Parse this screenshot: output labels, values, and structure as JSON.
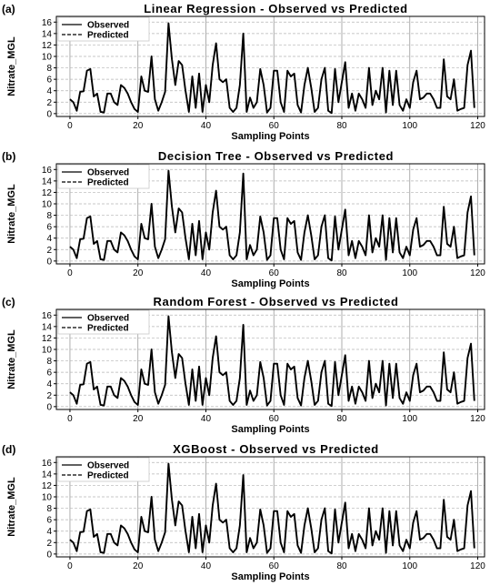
{
  "chart_data": [
    {
      "panel": "(a)",
      "type": "line",
      "title": "Linear Regression - Observed vs Predicted",
      "xlabel": "Sampling Points",
      "ylabel": "Nitrate_MGL",
      "xlim": [
        -4,
        122
      ],
      "ylim": [
        -0.5,
        17
      ],
      "xticks": [
        0,
        20,
        40,
        60,
        80,
        100,
        120
      ],
      "yticks": [
        0,
        2,
        4,
        6,
        8,
        10,
        12,
        14,
        16
      ],
      "grid": true,
      "legend": "top-left",
      "series": [
        {
          "name": "Observed",
          "style": "solid",
          "values": [
            2.5,
            2.0,
            0.5,
            3.8,
            3.9,
            7.5,
            7.8,
            3.0,
            3.5,
            0.3,
            0.2,
            3.5,
            3.5,
            2.0,
            1.5,
            5.0,
            4.5,
            3.5,
            2.0,
            0.8,
            0.3,
            6.5,
            4.0,
            3.8,
            10.0,
            2.5,
            0.5,
            2.0,
            3.8,
            15.8,
            9.5,
            5.0,
            9.2,
            8.5,
            4.0,
            0.3,
            6.5,
            1.0,
            7.0,
            0.3,
            5.0,
            2.0,
            8.5,
            12.3,
            6.0,
            5.5,
            6.0,
            1.0,
            0.3,
            1.0,
            5.0,
            14.0,
            0.3,
            2.8,
            1.0,
            2.0,
            7.8,
            5.0,
            0.2,
            1.0,
            7.5,
            7.5,
            2.0,
            0.3,
            7.5,
            6.5,
            7.0,
            1.5,
            0.2,
            5.0,
            8.0,
            4.5,
            0.3,
            1.0,
            6.0,
            8.0,
            0.5,
            0.1,
            7.8,
            2.0,
            5.5,
            9.0,
            1.0,
            3.5,
            0.5,
            3.5,
            2.5,
            1.0,
            8.0,
            1.5,
            4.0,
            2.5,
            8.0,
            0.2,
            7.5,
            1.5,
            7.5,
            1.5,
            0.5,
            2.5,
            1.0,
            5.5,
            7.5,
            2.5,
            2.8,
            3.5,
            3.5,
            2.5,
            1.0,
            1.0,
            9.5,
            3.0,
            2.5,
            6.0,
            0.5,
            0.8,
            1.0,
            8.5,
            11.0,
            1.0
          ]
        },
        {
          "name": "Predicted",
          "style": "dashed",
          "values": [
            2.5,
            2.0,
            0.5,
            3.8,
            3.9,
            7.5,
            7.8,
            3.0,
            3.5,
            0.3,
            0.2,
            3.5,
            3.5,
            2.0,
            1.5,
            5.0,
            4.5,
            3.5,
            2.0,
            0.8,
            0.3,
            6.5,
            4.0,
            3.8,
            10.0,
            2.5,
            0.5,
            2.0,
            3.8,
            15.8,
            9.5,
            5.0,
            9.2,
            8.5,
            4.0,
            0.3,
            6.5,
            1.0,
            7.0,
            0.3,
            5.0,
            2.0,
            8.5,
            12.3,
            6.0,
            5.5,
            6.0,
            1.0,
            0.3,
            1.0,
            5.0,
            14.0,
            0.3,
            2.8,
            1.0,
            2.0,
            7.8,
            5.0,
            0.2,
            1.0,
            7.5,
            7.5,
            2.0,
            0.3,
            7.5,
            6.5,
            7.0,
            1.5,
            0.2,
            5.0,
            8.0,
            4.5,
            0.3,
            1.0,
            6.0,
            8.0,
            0.5,
            0.1,
            7.8,
            2.0,
            5.5,
            9.0,
            1.0,
            3.5,
            0.5,
            3.5,
            2.5,
            1.0,
            8.0,
            1.5,
            4.0,
            2.5,
            8.0,
            0.2,
            7.5,
            1.5,
            7.5,
            1.5,
            0.5,
            2.5,
            1.0,
            5.5,
            7.5,
            2.5,
            2.8,
            3.5,
            3.5,
            2.5,
            1.0,
            1.0,
            9.5,
            3.0,
            2.5,
            6.0,
            0.5,
            0.8,
            1.0,
            8.5,
            11.0,
            1.0
          ]
        }
      ]
    },
    {
      "panel": "(b)",
      "type": "line",
      "title": "Decision Tree - Observed vs Predicted",
      "xlabel": "Sampling Points",
      "ylabel": "Nitrate_MGL",
      "xlim": [
        -4,
        122
      ],
      "ylim": [
        -0.5,
        17
      ],
      "xticks": [
        0,
        20,
        40,
        60,
        80,
        100,
        120
      ],
      "yticks": [
        0,
        2,
        4,
        6,
        8,
        10,
        12,
        14,
        16
      ],
      "grid": true,
      "legend": "top-left",
      "series": [
        {
          "name": "Observed",
          "style": "solid",
          "values": [
            2.5,
            2.0,
            0.5,
            3.8,
            3.9,
            7.5,
            7.8,
            3.0,
            3.5,
            0.3,
            0.2,
            3.5,
            3.5,
            2.0,
            1.5,
            5.0,
            4.5,
            3.5,
            2.0,
            0.8,
            0.3,
            6.5,
            4.0,
            3.8,
            10.0,
            2.5,
            0.5,
            2.0,
            3.8,
            15.8,
            9.5,
            5.0,
            9.2,
            8.5,
            4.0,
            0.3,
            6.5,
            1.0,
            7.0,
            0.3,
            5.0,
            2.0,
            8.5,
            12.3,
            6.0,
            5.5,
            6.0,
            1.0,
            0.3,
            1.0,
            5.0,
            15.3,
            0.3,
            2.8,
            1.0,
            2.0,
            7.8,
            5.0,
            0.2,
            1.0,
            7.5,
            7.5,
            2.0,
            0.3,
            7.5,
            6.5,
            7.0,
            1.5,
            0.2,
            5.0,
            8.0,
            4.5,
            0.3,
            1.0,
            6.0,
            8.0,
            0.5,
            0.1,
            7.8,
            2.0,
            5.5,
            9.0,
            1.0,
            3.5,
            0.5,
            3.5,
            2.5,
            1.0,
            8.0,
            1.5,
            4.0,
            2.5,
            8.0,
            0.2,
            7.5,
            1.5,
            7.5,
            1.5,
            0.5,
            2.5,
            1.0,
            5.5,
            7.5,
            2.5,
            2.8,
            3.5,
            3.5,
            2.5,
            1.0,
            1.0,
            9.5,
            3.0,
            2.5,
            6.0,
            0.5,
            0.8,
            1.0,
            8.5,
            11.3,
            1.0
          ]
        },
        {
          "name": "Predicted",
          "style": "dashed",
          "values": [
            2.5,
            2.0,
            0.5,
            3.8,
            3.9,
            7.5,
            7.8,
            3.0,
            3.5,
            0.3,
            0.2,
            3.5,
            3.5,
            2.0,
            1.5,
            5.0,
            4.5,
            3.5,
            2.0,
            0.8,
            0.3,
            6.5,
            4.0,
            3.8,
            10.0,
            2.5,
            0.5,
            2.0,
            3.8,
            15.8,
            9.5,
            5.0,
            9.2,
            8.5,
            4.0,
            0.3,
            6.5,
            1.0,
            7.0,
            0.3,
            5.0,
            2.0,
            8.5,
            12.3,
            6.0,
            5.5,
            6.0,
            1.0,
            0.3,
            1.0,
            5.0,
            15.3,
            0.3,
            2.8,
            1.0,
            2.0,
            7.8,
            5.0,
            0.2,
            1.0,
            7.5,
            7.5,
            2.0,
            0.3,
            7.5,
            6.5,
            7.0,
            1.5,
            0.2,
            5.0,
            8.0,
            4.5,
            0.3,
            1.0,
            6.0,
            8.0,
            0.5,
            0.1,
            7.8,
            2.0,
            5.5,
            9.0,
            1.0,
            3.5,
            0.5,
            3.5,
            2.5,
            1.0,
            8.0,
            1.5,
            4.0,
            2.5,
            8.0,
            0.2,
            7.5,
            1.5,
            7.5,
            1.5,
            0.5,
            2.5,
            1.0,
            5.5,
            7.5,
            2.5,
            2.8,
            3.5,
            3.5,
            2.5,
            1.0,
            1.0,
            9.5,
            3.0,
            2.5,
            6.0,
            0.5,
            0.8,
            1.0,
            8.5,
            11.3,
            1.0
          ]
        }
      ]
    },
    {
      "panel": "(c)",
      "type": "line",
      "title": "Random Forest - Observed vs Predicted",
      "xlabel": "Sampling Points",
      "ylabel": "Nitrate_MGL",
      "xlim": [
        -4,
        122
      ],
      "ylim": [
        -0.5,
        17
      ],
      "xticks": [
        0,
        20,
        40,
        60,
        80,
        100,
        120
      ],
      "yticks": [
        0,
        2,
        4,
        6,
        8,
        10,
        12,
        14,
        16
      ],
      "grid": true,
      "legend": "top-left",
      "series": [
        {
          "name": "Observed",
          "style": "solid",
          "values": [
            2.5,
            2.0,
            0.5,
            3.8,
            3.9,
            7.5,
            7.8,
            3.0,
            3.5,
            0.3,
            0.2,
            3.5,
            3.5,
            2.0,
            1.5,
            5.0,
            4.5,
            3.5,
            2.0,
            0.8,
            0.3,
            6.5,
            4.0,
            3.8,
            10.0,
            2.5,
            0.5,
            2.0,
            3.8,
            15.8,
            9.5,
            5.0,
            9.2,
            8.5,
            4.0,
            0.3,
            6.5,
            1.0,
            7.0,
            0.3,
            5.0,
            2.0,
            8.5,
            12.3,
            6.0,
            5.5,
            6.0,
            1.0,
            0.3,
            1.0,
            5.0,
            14.3,
            0.3,
            2.8,
            1.0,
            2.0,
            7.8,
            5.0,
            0.2,
            1.0,
            7.5,
            7.5,
            2.0,
            0.3,
            7.5,
            6.5,
            7.0,
            1.5,
            0.2,
            5.0,
            8.0,
            4.5,
            0.3,
            1.0,
            6.0,
            8.0,
            0.5,
            0.1,
            7.8,
            2.0,
            5.5,
            9.0,
            1.0,
            3.5,
            0.5,
            3.5,
            2.5,
            1.0,
            8.0,
            1.5,
            4.0,
            2.5,
            8.0,
            0.2,
            7.5,
            1.5,
            7.5,
            1.5,
            0.5,
            2.5,
            1.0,
            5.5,
            7.5,
            2.5,
            2.8,
            3.5,
            3.5,
            2.5,
            1.0,
            1.0,
            9.5,
            3.0,
            2.5,
            6.0,
            0.5,
            0.8,
            1.0,
            8.5,
            11.0,
            1.0
          ]
        },
        {
          "name": "Predicted",
          "style": "dashed",
          "values": [
            2.5,
            2.0,
            0.5,
            3.8,
            3.9,
            7.5,
            7.8,
            3.0,
            3.5,
            0.3,
            0.2,
            3.5,
            3.5,
            2.0,
            1.5,
            5.0,
            4.5,
            3.5,
            2.0,
            0.8,
            0.3,
            6.5,
            4.0,
            3.8,
            10.0,
            2.5,
            0.5,
            2.0,
            3.8,
            15.8,
            9.5,
            5.0,
            9.2,
            8.5,
            4.0,
            0.3,
            6.5,
            1.0,
            7.0,
            0.3,
            5.0,
            2.0,
            8.5,
            12.3,
            6.0,
            5.5,
            6.0,
            1.0,
            0.3,
            1.0,
            5.0,
            14.3,
            0.3,
            2.8,
            1.0,
            2.0,
            7.8,
            5.0,
            0.2,
            1.0,
            7.5,
            7.5,
            2.0,
            0.3,
            7.5,
            6.5,
            7.0,
            1.5,
            0.2,
            5.0,
            8.0,
            4.5,
            0.3,
            1.0,
            6.0,
            8.0,
            0.5,
            0.1,
            7.8,
            2.0,
            5.5,
            9.0,
            1.0,
            3.5,
            0.5,
            3.5,
            2.5,
            1.0,
            8.0,
            1.5,
            4.0,
            2.5,
            8.0,
            0.2,
            7.5,
            1.5,
            7.5,
            1.5,
            0.5,
            2.5,
            1.0,
            5.5,
            7.5,
            2.5,
            2.8,
            3.5,
            3.5,
            2.5,
            1.0,
            1.0,
            9.5,
            3.0,
            2.5,
            6.0,
            0.5,
            0.8,
            1.0,
            8.5,
            11.0,
            1.0
          ]
        }
      ]
    },
    {
      "panel": "(d)",
      "type": "line",
      "title": "XGBoost - Observed vs Predicted",
      "xlabel": "Sampling Points",
      "ylabel": "Nitrate_MGL",
      "xlim": [
        -4,
        122
      ],
      "ylim": [
        -0.5,
        17
      ],
      "xticks": [
        0,
        20,
        40,
        60,
        80,
        100,
        120
      ],
      "yticks": [
        0,
        2,
        4,
        6,
        8,
        10,
        12,
        14,
        16
      ],
      "grid": true,
      "legend": "top-left",
      "series": [
        {
          "name": "Observed",
          "style": "solid",
          "values": [
            2.5,
            2.0,
            0.5,
            3.8,
            3.9,
            7.5,
            7.8,
            3.0,
            3.5,
            0.3,
            0.2,
            3.5,
            3.5,
            2.0,
            1.5,
            5.0,
            4.5,
            3.5,
            2.0,
            0.8,
            0.3,
            6.5,
            4.0,
            3.8,
            10.0,
            2.5,
            0.5,
            2.0,
            3.8,
            15.8,
            9.5,
            5.0,
            9.2,
            8.5,
            4.0,
            0.3,
            6.5,
            1.0,
            7.0,
            0.3,
            5.0,
            2.0,
            8.5,
            12.3,
            6.0,
            5.5,
            6.0,
            1.0,
            0.3,
            1.0,
            5.0,
            13.8,
            0.3,
            2.8,
            1.0,
            2.0,
            7.8,
            5.0,
            0.2,
            1.0,
            7.5,
            7.5,
            2.0,
            0.3,
            7.5,
            6.5,
            7.0,
            1.5,
            0.2,
            5.0,
            8.0,
            4.5,
            0.3,
            1.0,
            6.0,
            8.0,
            0.5,
            0.1,
            7.8,
            2.0,
            5.5,
            9.0,
            1.0,
            3.5,
            0.5,
            3.5,
            2.5,
            1.0,
            8.0,
            1.5,
            4.0,
            2.5,
            8.0,
            0.2,
            7.5,
            1.5,
            7.5,
            1.5,
            0.5,
            2.5,
            1.0,
            5.5,
            7.5,
            2.5,
            2.8,
            3.5,
            3.5,
            2.5,
            1.0,
            1.0,
            9.5,
            3.0,
            2.5,
            6.0,
            0.5,
            0.8,
            1.0,
            8.5,
            11.0,
            1.0
          ]
        },
        {
          "name": "Predicted",
          "style": "dashed",
          "values": [
            2.5,
            2.0,
            0.5,
            3.8,
            3.9,
            7.5,
            7.8,
            3.0,
            3.5,
            0.3,
            0.2,
            3.5,
            3.5,
            2.0,
            1.5,
            5.0,
            4.5,
            3.5,
            2.0,
            0.8,
            0.3,
            6.5,
            4.0,
            3.8,
            10.0,
            2.5,
            0.5,
            2.0,
            3.8,
            15.8,
            9.5,
            5.0,
            9.2,
            8.5,
            4.0,
            0.3,
            6.5,
            1.0,
            7.0,
            0.3,
            5.0,
            2.0,
            8.5,
            12.3,
            6.0,
            5.5,
            6.0,
            1.0,
            0.3,
            1.0,
            5.0,
            13.8,
            0.3,
            2.8,
            1.0,
            2.0,
            7.8,
            5.0,
            0.2,
            1.0,
            7.5,
            7.5,
            2.0,
            0.3,
            7.5,
            6.5,
            7.0,
            1.5,
            0.2,
            5.0,
            8.0,
            4.5,
            0.3,
            1.0,
            6.0,
            8.0,
            0.5,
            0.1,
            7.8,
            2.0,
            5.5,
            9.0,
            1.0,
            3.5,
            0.5,
            3.5,
            2.5,
            1.0,
            8.0,
            1.5,
            4.0,
            2.5,
            8.0,
            0.2,
            7.5,
            1.5,
            7.5,
            1.5,
            0.5,
            2.5,
            1.0,
            5.5,
            7.5,
            2.5,
            2.8,
            3.5,
            3.5,
            2.5,
            1.0,
            1.0,
            9.5,
            3.0,
            2.5,
            6.0,
            0.5,
            0.8,
            1.0,
            8.5,
            11.0,
            1.0
          ]
        }
      ]
    }
  ]
}
